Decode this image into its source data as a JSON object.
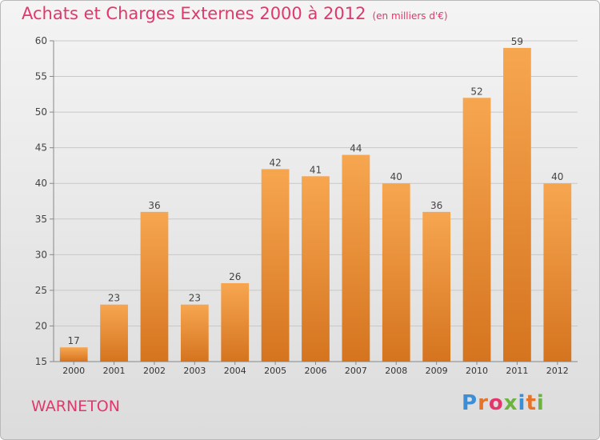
{
  "title": "Achats et Charges Externes 2000 à 2012",
  "subtitle": "(en milliers d'€)",
  "place": "WARNETON",
  "logo": {
    "text": "Proxiti",
    "letter_colors": [
      "#3c8ed6",
      "#e5742a",
      "#e3376b",
      "#6cb43f",
      "#3c8ed6",
      "#e5742a",
      "#6cb43f"
    ]
  },
  "colors": {
    "bar_top": "#f7a650",
    "bar_bottom": "#d5741f",
    "title": "#e3376b",
    "grid": "#c8c8c8"
  },
  "chart_data": {
    "type": "bar",
    "title": "Achats et Charges Externes 2000 à 2012",
    "subtitle": "(en milliers d'€)",
    "categories": [
      "2000",
      "2001",
      "2002",
      "2003",
      "2004",
      "2005",
      "2006",
      "2007",
      "2008",
      "2009",
      "2010",
      "2011",
      "2012"
    ],
    "values": [
      17,
      23,
      36,
      23,
      26,
      42,
      41,
      44,
      40,
      36,
      52,
      59,
      40
    ],
    "ylim": [
      15,
      60
    ],
    "yticks": [
      15,
      20,
      25,
      30,
      35,
      40,
      45,
      50,
      55,
      60
    ],
    "xlabel": "",
    "ylabel": "",
    "grid": true,
    "data_labels": true
  }
}
